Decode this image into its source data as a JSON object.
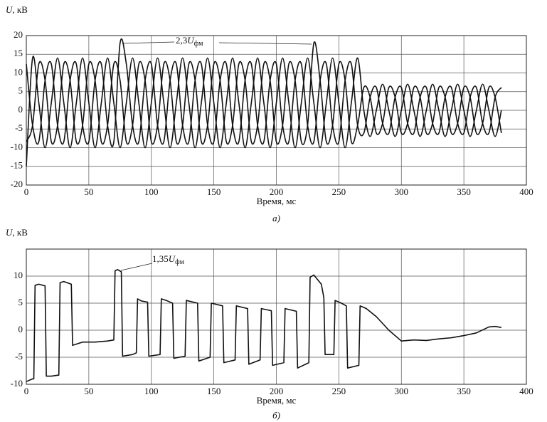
{
  "chart_data": [
    {
      "type": "line",
      "ylabel": {
        "symbol": "U",
        "unit": ", кВ"
      },
      "xlabel": "Время, мс",
      "caption": "а)",
      "annotation": {
        "number": "2,3",
        "symbol": "U",
        "sub": "фм"
      },
      "xlim": [
        0,
        400
      ],
      "xticks": [
        0,
        50,
        100,
        150,
        200,
        250,
        300,
        350,
        400
      ],
      "ylim": [
        -20,
        20
      ],
      "yticks": [
        -20,
        -15,
        -10,
        -5,
        0,
        5,
        10,
        15,
        20
      ],
      "grid": true,
      "x": [
        0,
        5,
        10,
        15,
        20,
        25,
        30,
        35,
        40,
        45,
        50,
        55,
        60,
        65,
        70,
        75,
        80,
        85,
        90,
        95,
        100,
        105,
        110,
        115,
        120,
        125,
        130,
        135,
        140,
        145,
        150,
        155,
        160,
        165,
        170,
        175,
        180,
        185,
        190,
        195,
        200,
        205,
        210,
        215,
        220,
        225,
        230,
        235,
        240,
        245,
        250,
        255,
        260,
        265,
        270,
        275,
        280,
        285,
        290,
        295,
        300,
        305,
        310,
        315,
        320,
        325,
        330,
        335,
        340,
        345,
        350,
        355,
        360,
        365,
        370,
        375,
        380
      ],
      "series": [
        {
          "color": "#111111",
          "values": [
            -15,
            14,
            2,
            -10,
            2,
            14,
            2,
            -10,
            2,
            14,
            2,
            -10,
            2,
            14,
            2,
            -10,
            2,
            14,
            2,
            -10,
            2,
            14,
            2,
            -10,
            2,
            14,
            2,
            -10,
            2,
            14,
            2,
            -10,
            2,
            14,
            2,
            -10,
            2,
            14,
            2,
            -10,
            2,
            14,
            2,
            -10,
            2,
            14,
            2,
            -10,
            2,
            14,
            2,
            -10,
            2,
            14,
            0,
            -7,
            0,
            7,
            0,
            -7,
            0,
            7,
            0,
            -7,
            0,
            7,
            0,
            -7,
            0,
            7,
            0,
            -7,
            0,
            7,
            0,
            -7,
            0
          ]
        },
        {
          "color": "#111111",
          "values": [
            -8.4,
            -4,
            12.4,
            8,
            -8.4,
            -4,
            12.4,
            8,
            -8.4,
            -4,
            12.4,
            8,
            -8.4,
            -4,
            12.4,
            8,
            -8.4,
            -4,
            12.4,
            8,
            -8.4,
            -4,
            12.4,
            8,
            -8.4,
            -4,
            12.4,
            8,
            -8.4,
            -4,
            12.4,
            8,
            -8.4,
            -4,
            12.4,
            8,
            -8.4,
            -4,
            12.4,
            8,
            -8.4,
            -4,
            12.4,
            8,
            -8.4,
            -4,
            18,
            8,
            -8.4,
            -4,
            12.4,
            8,
            -8.4,
            -4,
            6.1,
            3.5,
            -6.1,
            -3.5,
            6.1,
            3.5,
            -6.1,
            -3.5,
            6.1,
            3.5,
            -6.1,
            -3.5,
            6.1,
            3.5,
            -6.1,
            -3.5,
            6.1,
            3.5,
            -6.1,
            -3.5,
            6.1,
            3.5,
            -6.1
          ]
        },
        {
          "color": "#111111",
          "values": [
            12.4,
            -4,
            -8.4,
            8,
            12.4,
            -4,
            -8.4,
            8,
            12.4,
            -4,
            -8.4,
            8,
            12.4,
            -4,
            -8.4,
            18,
            12.4,
            -4,
            -8.4,
            8,
            12.4,
            -4,
            -8.4,
            8,
            12.4,
            -4,
            -8.4,
            8,
            12.4,
            -4,
            -8.4,
            8,
            12.4,
            -4,
            -8.4,
            8,
            12.4,
            -4,
            -8.4,
            8,
            12.4,
            -4,
            -8.4,
            8,
            12.4,
            -4,
            -8.4,
            8,
            12.4,
            -4,
            -8.4,
            8,
            12.4,
            -4,
            -6.1,
            3.5,
            6.1,
            -3.5,
            -6.1,
            3.5,
            6.1,
            -3.5,
            -6.1,
            3.5,
            6.1,
            -3.5,
            -6.1,
            3.5,
            6.1,
            -3.5,
            -6.1,
            3.5,
            6.1,
            -3.5,
            -6.1,
            3.5,
            6.1
          ]
        }
      ]
    },
    {
      "type": "line",
      "ylabel": {
        "symbol": "U",
        "unit": ", кВ"
      },
      "xlabel": "Время, мс",
      "caption": "б)",
      "annotation": {
        "number": "1,35",
        "symbol": "U",
        "sub": "фм"
      },
      "xlim": [
        0,
        400
      ],
      "xticks": [
        0,
        50,
        100,
        150,
        200,
        250,
        300,
        350,
        400
      ],
      "ylim": [
        -10,
        15
      ],
      "yticks": [
        -10,
        -5,
        0,
        5,
        10
      ],
      "grid": true,
      "x": [
        0,
        5,
        6,
        7,
        10,
        15,
        16,
        20,
        26,
        27,
        30,
        36,
        37,
        45,
        55,
        65,
        70,
        71,
        73,
        76,
        77,
        85,
        88,
        89,
        92,
        97,
        98,
        107,
        108,
        112,
        117,
        118,
        127,
        128,
        137,
        138,
        147,
        148,
        157,
        158,
        167,
        168,
        177,
        178,
        187,
        188,
        196,
        197,
        206,
        207,
        216,
        217,
        226,
        227,
        230,
        236,
        238,
        239,
        246,
        247,
        252,
        256,
        257,
        266,
        267,
        272,
        280,
        290,
        300,
        310,
        320,
        330,
        340,
        350,
        360,
        370,
        375,
        380
      ],
      "series": [
        {
          "color": "#111111",
          "values": [
            -9.5,
            -9,
            -9,
            8.3,
            8.5,
            8.2,
            -8.5,
            -8.5,
            -8.3,
            8.8,
            9,
            8.5,
            -2.8,
            -2.2,
            -2.2,
            -2,
            -1.8,
            11,
            11.2,
            10.8,
            -4.8,
            -4.5,
            -4.2,
            5.8,
            5.4,
            5.2,
            -4.8,
            -4.5,
            5.8,
            5.5,
            5,
            -5.2,
            -4.8,
            5.5,
            5,
            -5.7,
            -5,
            5,
            4.5,
            -6,
            -5.5,
            4.5,
            4,
            -6.3,
            -5.5,
            4,
            3.6,
            -6.5,
            -6,
            4,
            3.5,
            -7,
            -6,
            9.8,
            10.2,
            8.5,
            6,
            -4.5,
            -4.5,
            5.5,
            5,
            4.5,
            -7,
            -6.5,
            4.5,
            4,
            2.5,
            0,
            -2,
            -1.8,
            -1.9,
            -1.6,
            -1.4,
            -1,
            -0.5,
            0.6,
            0.7,
            0.5
          ]
        }
      ]
    }
  ]
}
